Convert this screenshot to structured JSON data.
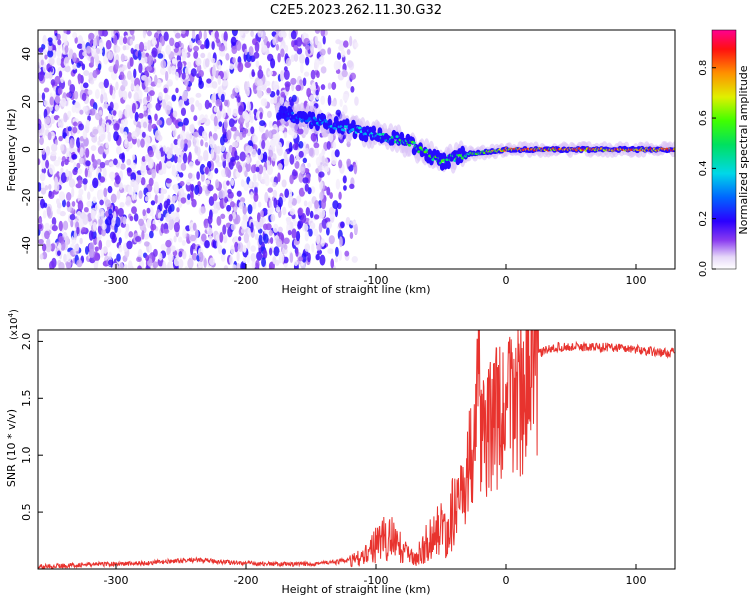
{
  "title": "C2E5.2023.262.11.30.G32",
  "colorbar": {
    "label": "Normalized spectral amplitude",
    "ticks": [
      "0.0",
      "0.2",
      "0.4",
      "0.6",
      "0.8"
    ],
    "tick_values": [
      0.0,
      0.2,
      0.4,
      0.6,
      0.8
    ],
    "range": [
      0,
      0.95
    ]
  },
  "chart_data": [
    {
      "type": "heatmap",
      "xlabel": "Height of straight line (km)",
      "ylabel": "Frequency (Hz)",
      "xlim": [
        -360,
        130
      ],
      "ylim": [
        -50,
        50
      ],
      "xticks": [
        -300,
        -200,
        -100,
        0,
        100
      ],
      "yticks": [
        -40,
        -20,
        0,
        20,
        40
      ],
      "description_points": {
        "noise_region_x": [
          -360,
          -140
        ],
        "signal_track": [
          {
            "x": -175,
            "y": 15,
            "v": 0.25
          },
          {
            "x": -130,
            "y": 10,
            "v": 0.4
          },
          {
            "x": -100,
            "y": 6,
            "v": 0.45
          },
          {
            "x": -75,
            "y": 3,
            "v": 0.6
          },
          {
            "x": -50,
            "y": -5,
            "v": 0.6
          },
          {
            "x": -30,
            "y": -2,
            "v": 0.55
          },
          {
            "x": 0,
            "y": 0,
            "v": 0.85
          },
          {
            "x": 50,
            "y": 0,
            "v": 0.9
          },
          {
            "x": 120,
            "y": 0,
            "v": 0.9
          }
        ]
      }
    },
    {
      "type": "line",
      "xlabel": "Height of straight line (km)",
      "ylabel": "SNR (10 * v/v)",
      "yscale_label": "(x10",
      "yscale_exp": "4",
      "xlim": [
        -360,
        130
      ],
      "ylim": [
        0,
        2.1
      ],
      "xticks": [
        -300,
        -200,
        -100,
        0,
        100
      ],
      "yticks": [
        0.5,
        1.0,
        1.5,
        2.0
      ],
      "ytick_labels": [
        "0.5",
        "1.0",
        "1.5",
        "2.0"
      ],
      "color": "#e8332e",
      "series": [
        {
          "x": [
            -360,
            -320,
            -280,
            -240,
            -200,
            -160,
            -130,
            -110,
            -100,
            -90,
            -80,
            -70,
            -60,
            -50,
            -40,
            -30,
            -25,
            -22,
            -20,
            -15,
            -10,
            -5,
            0,
            5,
            10,
            15,
            20,
            30,
            40,
            60,
            80,
            100,
            120,
            130
          ],
          "y": [
            0.02,
            0.04,
            0.05,
            0.08,
            0.05,
            0.04,
            0.06,
            0.12,
            0.25,
            0.35,
            0.2,
            0.1,
            0.3,
            0.4,
            0.55,
            0.8,
            1.2,
            2.05,
            1.35,
            1.1,
            1.4,
            1.3,
            1.35,
            1.5,
            1.55,
            1.7,
            1.85,
            1.92,
            1.95,
            1.95,
            1.95,
            1.93,
            1.9,
            1.9
          ]
        }
      ]
    }
  ]
}
